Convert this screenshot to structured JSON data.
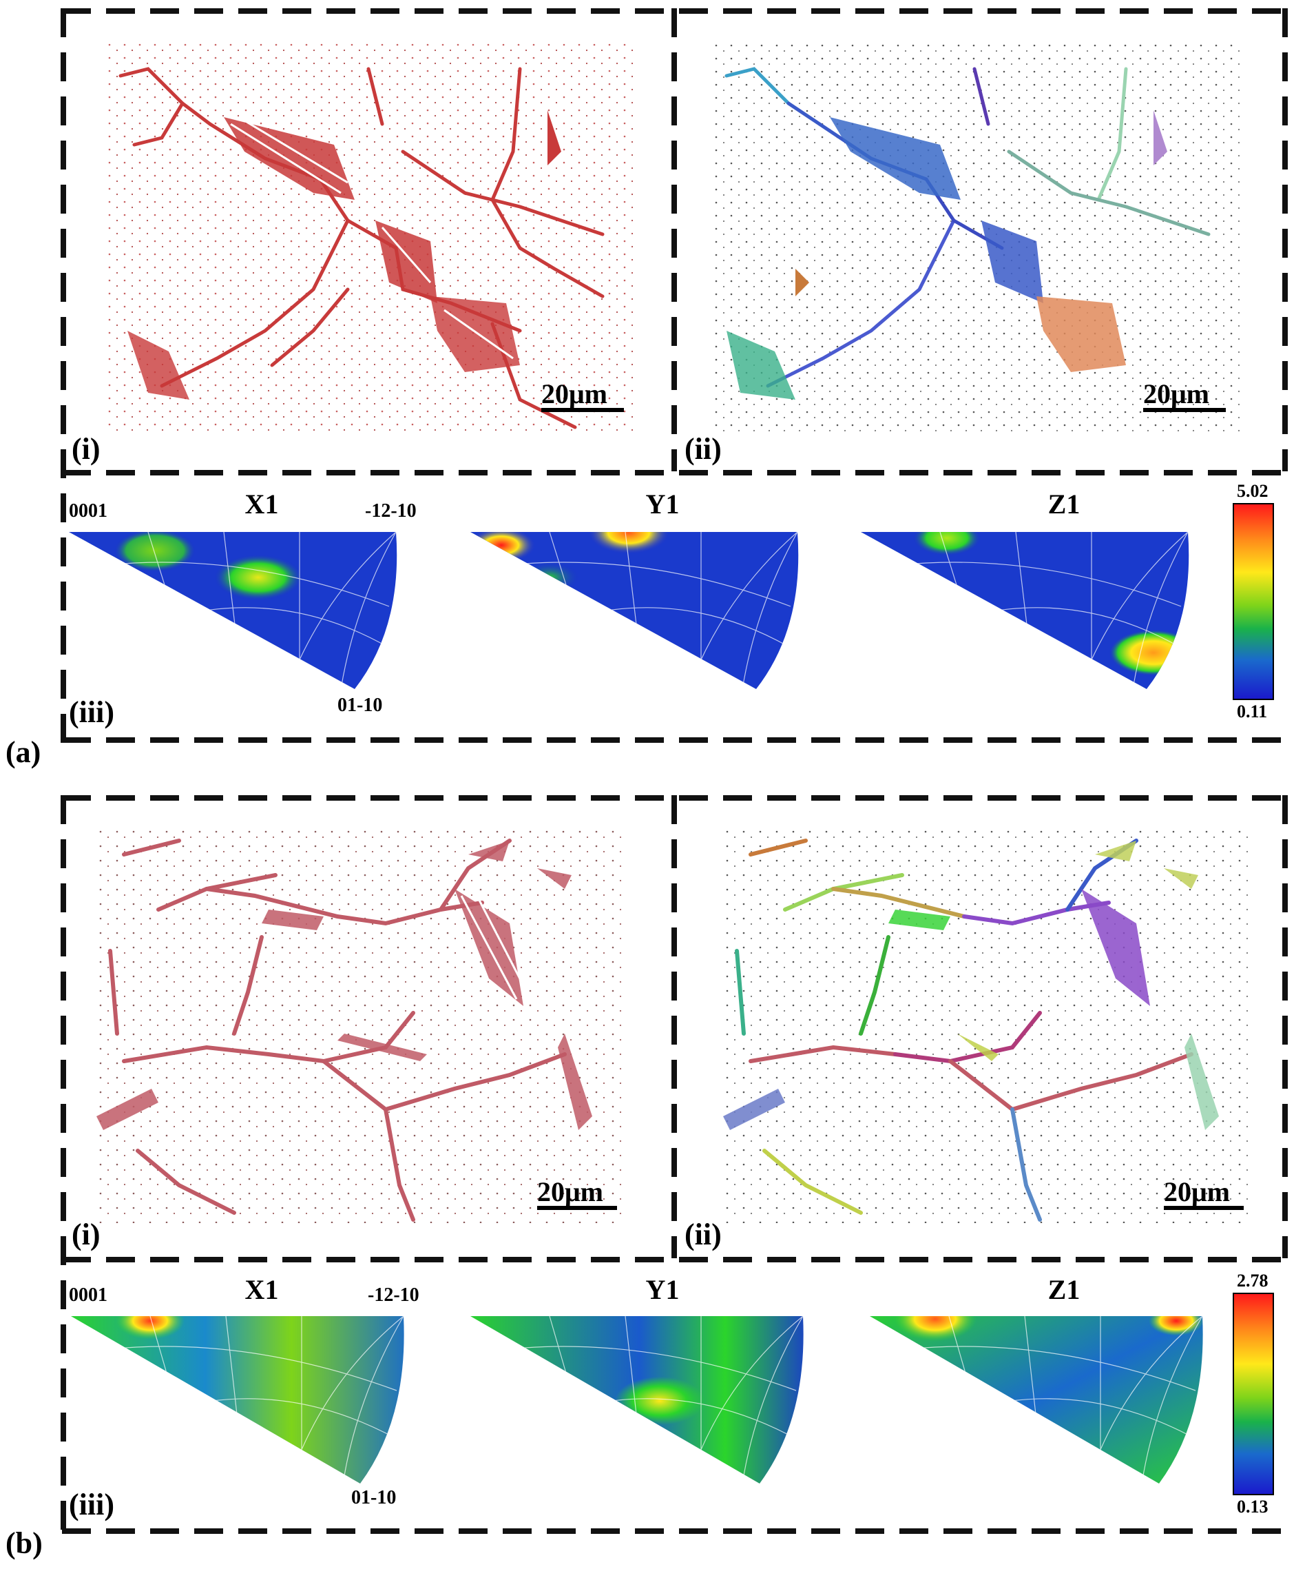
{
  "panels": [
    {
      "id": "a",
      "label": "(a)",
      "maps": [
        {
          "label": "(i)",
          "scale_bar": "20μm",
          "style": "red"
        },
        {
          "label": "(ii)",
          "scale_bar": "20μm",
          "style": "multi"
        }
      ],
      "ipf": {
        "label": "(iii)",
        "titles": [
          "X1",
          "Y1",
          "Z1"
        ],
        "corner_labels": {
          "top_left": "0001",
          "top_right": "-12-10",
          "bottom": "01-10"
        },
        "colorbar": {
          "max": "5.02",
          "min": "0.11"
        }
      }
    },
    {
      "id": "b",
      "label": "(b)",
      "maps": [
        {
          "label": "(i)",
          "scale_bar": "20μm",
          "style": "red"
        },
        {
          "label": "(ii)",
          "scale_bar": "20μm",
          "style": "multi"
        }
      ],
      "ipf": {
        "label": "(iii)",
        "titles": [
          "X1",
          "Y1",
          "Z1"
        ],
        "corner_labels": {
          "top_left": "0001",
          "top_right": "-12-10",
          "bottom": "01-10"
        },
        "colorbar": {
          "max": "2.78",
          "min": "0.13"
        }
      }
    }
  ],
  "colors": {
    "phase_red": "#c83a3a",
    "ipf_low": "#1a1acc",
    "ipf_high": "#ff1a1a",
    "ipf_mid": "#2bd42b"
  }
}
